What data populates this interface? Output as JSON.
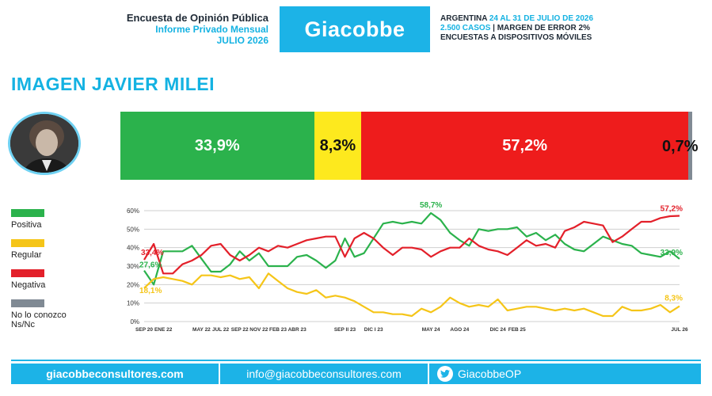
{
  "header": {
    "line1": "Encuesta de Opinión Pública",
    "line2": "Informe Privado Mensual",
    "line3": "JULIO 2026",
    "brand": "Giacobbe",
    "right1_a": "ARGENTINA",
    "right1_b": " 24 AL 31 DE JULIO DE 2026",
    "right2_a": "2.500 CASOS",
    "right2_b": " | MARGEN DE ERROR 2%",
    "right3": "ENCUESTAS A DISPOSITIVOS MÓVILES"
  },
  "title": "IMAGEN JAVIER MILEI",
  "summary": {
    "positiva": "33,9%",
    "regular": "8,3%",
    "negativa": "57,2%",
    "nsnc": "0,7%",
    "values": [
      33.9,
      8.3,
      57.2,
      0.7
    ]
  },
  "legend": {
    "positiva": "Positiva",
    "regular": "Regular",
    "negativa": "Negativa",
    "nsnc_1": "No lo conozco",
    "nsnc_2": "Ns/Nc"
  },
  "colors": {
    "positiva": "#2bb24c",
    "regular": "#f5c518",
    "negativa": "#e3202a",
    "nsnc": "#808a94",
    "accent": "#1cb3e7"
  },
  "chart_data": {
    "type": "line",
    "ylim": [
      0,
      60
    ],
    "yticks": [
      "0%",
      "10%",
      "20%",
      "30%",
      "40%",
      "50%",
      "60%"
    ],
    "xtick_labels": [
      {
        "i": 0,
        "label": "SEP 20"
      },
      {
        "i": 2,
        "label": "ENE 22"
      },
      {
        "i": 6,
        "label": "MAY 22"
      },
      {
        "i": 8,
        "label": "JUL 22"
      },
      {
        "i": 10,
        "label": "SEP 22"
      },
      {
        "i": 12,
        "label": "NOV 22"
      },
      {
        "i": 14,
        "label": "FEB 23"
      },
      {
        "i": 16,
        "label": "ABR 23"
      },
      {
        "i": 21,
        "label": "SEP II 23"
      },
      {
        "i": 24,
        "label": "DIC I 23"
      },
      {
        "i": 30,
        "label": "MAY 24"
      },
      {
        "i": 33,
        "label": "AGO 24"
      },
      {
        "i": 37,
        "label": "DIC 24"
      },
      {
        "i": 39,
        "label": "FEB 25"
      },
      {
        "i": 56,
        "label": "JUL 26"
      }
    ],
    "series": [
      {
        "name": "Positiva",
        "color": "#2bb24c",
        "values": [
          27.6,
          20,
          38,
          38,
          38,
          41,
          34,
          27,
          27,
          31,
          38,
          33,
          37,
          30,
          30,
          30,
          35,
          36,
          33,
          29,
          33,
          45,
          35,
          37,
          45,
          53,
          54,
          53,
          54,
          53,
          58.7,
          55,
          48,
          44,
          41,
          50,
          49,
          50,
          50,
          51,
          46,
          48,
          44,
          47,
          42,
          39,
          38,
          42,
          46,
          44,
          42,
          41,
          37,
          36,
          35,
          38,
          33.9
        ]
      },
      {
        "name": "Regular",
        "color": "#f5c518",
        "values": [
          18.1,
          23,
          24,
          23,
          22,
          20,
          25,
          25,
          24,
          25,
          23,
          24,
          18,
          26,
          22,
          18,
          16,
          15,
          17,
          13,
          14,
          13,
          11,
          8,
          5,
          5,
          4,
          4,
          3,
          7,
          5,
          8,
          13,
          10,
          8,
          9,
          8,
          12,
          6,
          7,
          8,
          8,
          7,
          6,
          7,
          6,
          7,
          5,
          3,
          3,
          8,
          6,
          6,
          7,
          9,
          5,
          8.3
        ]
      },
      {
        "name": "Negativa",
        "color": "#e3202a",
        "values": [
          33.4,
          42,
          26,
          26,
          31,
          33,
          36,
          41,
          42,
          36,
          33,
          36,
          40,
          38,
          41,
          40,
          42,
          44,
          45,
          46,
          46,
          35,
          45,
          48,
          45,
          40,
          36,
          40,
          40,
          39,
          35,
          38,
          40,
          40,
          45,
          41,
          39,
          38,
          36,
          40,
          44,
          41,
          42,
          40,
          49,
          51,
          54,
          53,
          52,
          43,
          46,
          50,
          54,
          54,
          56,
          57,
          57.2
        ]
      }
    ],
    "annotations": [
      {
        "text": "27,6%",
        "series": "Positiva",
        "i": 0
      },
      {
        "text": "33,4%",
        "series": "Negativa",
        "i": 0
      },
      {
        "text": "18,1%",
        "series": "Regular",
        "i": 0
      },
      {
        "text": "58,7%",
        "series": "Positiva",
        "i": 30
      },
      {
        "text": "57,2%",
        "series": "Negativa",
        "i": 56
      },
      {
        "text": "33,9%",
        "series": "Positiva",
        "i": 56
      },
      {
        "text": "8,3%",
        "series": "Regular",
        "i": 56
      }
    ]
  },
  "footer": {
    "web": "giacobbeconsultores.com",
    "email": "info@giacobbeconsultores.com",
    "twitter": "GiacobbeOP"
  }
}
